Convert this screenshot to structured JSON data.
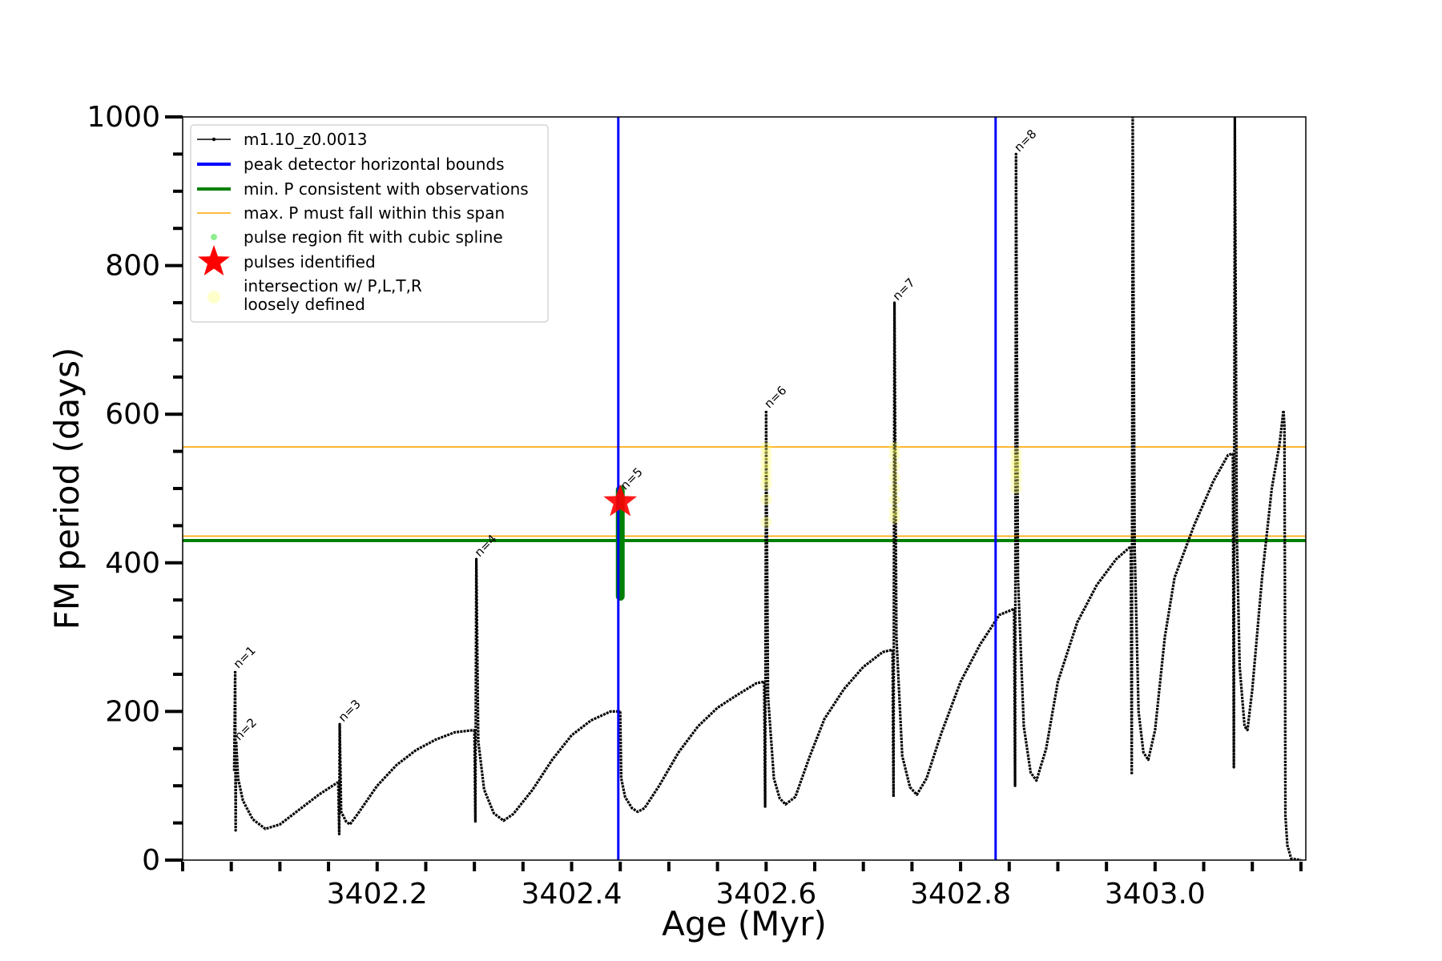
{
  "chart_data": {
    "type": "line",
    "xlabel": "Age (Myr)",
    "ylabel": "FM period (days)",
    "xlim": [
      3402.0,
      3403.155
    ],
    "ylim": [
      0,
      1000
    ],
    "xticks": [
      3402.2,
      3402.4,
      3402.6,
      3402.8,
      3403.0
    ],
    "xtick_labels": [
      "3402.2",
      "3402.4",
      "3402.6",
      "3402.8",
      "3403.0"
    ],
    "xminor_step": 0.05,
    "yticks": [
      0,
      200,
      400,
      600,
      800,
      1000
    ],
    "ytick_labels": [
      "0",
      "200",
      "400",
      "600",
      "800",
      "1000"
    ],
    "yminor_step": 50,
    "grid": false,
    "legend_position": "top-left",
    "legend": [
      {
        "label": "m1.10_z0.0013",
        "marker": "line-dot",
        "color": "#000000"
      },
      {
        "label": "peak detector horizontal bounds",
        "marker": "line",
        "color": "#0000ff"
      },
      {
        "label": "min. P consistent with observations",
        "marker": "line",
        "color": "#008000"
      },
      {
        "label": "max. P must fall within this span",
        "marker": "thin-line",
        "color": "#ffa500"
      },
      {
        "label": "pulse region fit with cubic spline",
        "marker": "dot",
        "color": "#90ee90"
      },
      {
        "label": "pulses identified",
        "marker": "star",
        "color": "#ff0000"
      },
      {
        "label": "intersection w/ P,L,T,R",
        "label2": "loosely defined",
        "marker": "circle",
        "color": "#ffffcc"
      }
    ],
    "series": [
      {
        "name": "m1.10_z0.0013",
        "color": "#000000",
        "segments": [
          [
            [
              3402.053,
              120
            ],
            [
              3402.054,
              255
            ],
            [
              3402.0545,
              40
            ],
            [
              3402.055,
              160
            ],
            [
              3402.057,
              110
            ],
            [
              3402.062,
              80
            ],
            [
              3402.072,
              55
            ],
            [
              3402.085,
              42
            ],
            [
              3402.1,
              48
            ],
            [
              3402.12,
              68
            ],
            [
              3402.14,
              88
            ],
            [
              3402.16,
              105
            ]
          ],
          [
            [
              3402.16,
              105
            ],
            [
              3402.161,
              35
            ],
            [
              3402.1615,
              183
            ],
            [
              3402.163,
              65
            ],
            [
              3402.168,
              52
            ],
            [
              3402.172,
              48
            ],
            [
              3402.18,
              62
            ],
            [
              3402.2,
              100
            ],
            [
              3402.22,
              128
            ],
            [
              3402.24,
              148
            ],
            [
              3402.26,
              162
            ],
            [
              3402.28,
              172
            ],
            [
              3402.3,
              175
            ]
          ],
          [
            [
              3402.3,
              175
            ],
            [
              3402.301,
              52
            ],
            [
              3402.302,
              405
            ],
            [
              3402.304,
              160
            ],
            [
              3402.31,
              95
            ],
            [
              3402.32,
              63
            ],
            [
              3402.33,
              53
            ],
            [
              3402.34,
              62
            ],
            [
              3402.36,
              95
            ],
            [
              3402.38,
              135
            ],
            [
              3402.4,
              168
            ],
            [
              3402.42,
              188
            ],
            [
              3402.44,
              200
            ],
            [
              3402.45,
              200
            ]
          ],
          [
            [
              3402.45,
              200
            ],
            [
              3402.451,
              110
            ],
            [
              3402.455,
              85
            ],
            [
              3402.462,
              70
            ],
            [
              3402.468,
              65
            ],
            [
              3402.475,
              70
            ],
            [
              3402.49,
              100
            ],
            [
              3402.51,
              145
            ],
            [
              3402.53,
              180
            ],
            [
              3402.55,
              205
            ],
            [
              3402.57,
              222
            ],
            [
              3402.59,
              238
            ],
            [
              3402.598,
              240
            ]
          ],
          [
            [
              3402.598,
              240
            ],
            [
              3402.599,
              72
            ],
            [
              3402.6,
              605
            ],
            [
              3402.602,
              220
            ],
            [
              3402.608,
              110
            ],
            [
              3402.614,
              83
            ],
            [
              3402.62,
              75
            ],
            [
              3402.63,
              85
            ],
            [
              3402.645,
              140
            ],
            [
              3402.66,
              190
            ],
            [
              3402.68,
              230
            ],
            [
              3402.7,
              260
            ],
            [
              3402.72,
              280
            ],
            [
              3402.73,
              283
            ]
          ],
          [
            [
              3402.73,
              283
            ],
            [
              3402.731,
              85
            ],
            [
              3402.732,
              750
            ],
            [
              3402.734,
              300
            ],
            [
              3402.74,
              140
            ],
            [
              3402.748,
              98
            ],
            [
              3402.755,
              88
            ],
            [
              3402.765,
              110
            ],
            [
              3402.78,
              170
            ],
            [
              3402.8,
              240
            ],
            [
              3402.82,
              290
            ],
            [
              3402.84,
              330
            ],
            [
              3402.855,
              338
            ]
          ],
          [
            [
              3402.855,
              338
            ],
            [
              3402.856,
              100
            ],
            [
              3402.857,
              950
            ],
            [
              3402.859,
              380
            ],
            [
              3402.865,
              180
            ],
            [
              3402.872,
              118
            ],
            [
              3402.878,
              107
            ],
            [
              3402.888,
              150
            ],
            [
              3402.9,
              240
            ],
            [
              3402.92,
              320
            ],
            [
              3402.94,
              370
            ],
            [
              3402.96,
              405
            ],
            [
              3402.975,
              422
            ]
          ],
          [
            [
              3402.975,
              422
            ],
            [
              3402.976,
              115
            ],
            [
              3402.977,
              1000
            ],
            [
              3402.979,
              420
            ],
            [
              3402.983,
              200
            ],
            [
              3402.988,
              145
            ],
            [
              3402.993,
              135
            ],
            [
              3403.0,
              175
            ],
            [
              3403.01,
              300
            ],
            [
              3403.02,
              380
            ],
            [
              3403.04,
              450
            ],
            [
              3403.06,
              510
            ],
            [
              3403.075,
              545
            ],
            [
              3403.08,
              547
            ]
          ],
          [
            [
              3403.08,
              547
            ],
            [
              3403.081,
              125
            ],
            [
              3403.082,
              1000
            ],
            [
              3403.084,
              440
            ],
            [
              3403.087,
              260
            ],
            [
              3403.092,
              180
            ],
            [
              3403.095,
              175
            ],
            [
              3403.1,
              230
            ],
            [
              3403.11,
              380
            ],
            [
              3403.12,
              500
            ],
            [
              3403.128,
              560
            ],
            [
              3403.132,
              605
            ],
            [
              3403.133,
              585
            ],
            [
              3403.1335,
              370
            ],
            [
              3403.134,
              60
            ],
            [
              3403.136,
              20
            ],
            [
              3403.14,
              2
            ],
            [
              3403.15,
              0
            ]
          ]
        ]
      }
    ],
    "vertical_lines": [
      {
        "label": "peak detector horizontal bounds",
        "x": [
          3402.448,
          3402.836
        ],
        "color": "#0000ff"
      }
    ],
    "horizontal_lines": [
      {
        "label": "min. P consistent with observations",
        "y": 430,
        "color": "#008000"
      },
      {
        "label": "max. P must fall within this span",
        "y": [
          436,
          556
        ],
        "color": "#ffa500"
      }
    ],
    "pulse_fit_region": {
      "label": "pulse region fit with cubic spline",
      "x": 3402.45,
      "y_range": [
        355,
        498
      ],
      "color": "#008000"
    },
    "pulses_identified": [
      {
        "x": 3402.45,
        "y": 482
      }
    ],
    "loose_intersections": [
      {
        "x": 3402.6,
        "y": [
          455,
          485,
          505,
          515,
          525,
          535,
          545,
          555
        ]
      },
      {
        "x": 3402.732,
        "y": [
          460,
          470,
          485,
          500,
          515,
          530,
          545,
          555
        ]
      },
      {
        "x": 3402.857,
        "y": [
          500,
          512,
          522,
          530,
          538,
          548
        ]
      }
    ],
    "annotations": [
      {
        "text": "n=1",
        "x": 3402.054,
        "y": 255
      },
      {
        "text": "n=2",
        "x": 3402.055,
        "y": 158
      },
      {
        "text": "n=3",
        "x": 3402.162,
        "y": 183
      },
      {
        "text": "n=4",
        "x": 3402.302,
        "y": 405
      },
      {
        "text": "n=5",
        "x": 3402.452,
        "y": 495
      },
      {
        "text": "n=6",
        "x": 3402.6,
        "y": 605
      },
      {
        "text": "n=7",
        "x": 3402.732,
        "y": 750
      },
      {
        "text": "n=8",
        "x": 3402.857,
        "y": 950
      }
    ]
  }
}
